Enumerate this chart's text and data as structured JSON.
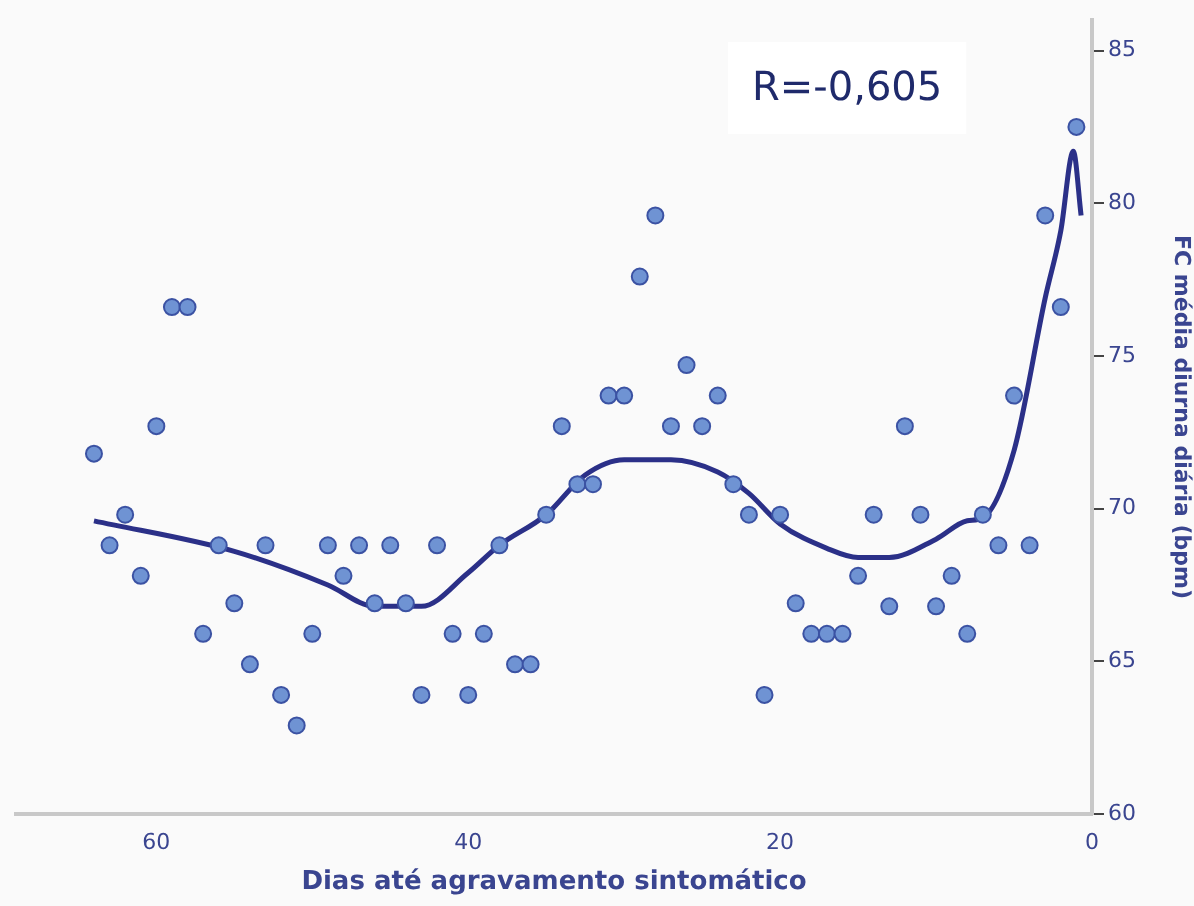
{
  "chart_data": {
    "type": "scatter",
    "xlabel": "Dias até agravamento sintomático",
    "ylabel": "FC média diurna diária (bpm)",
    "annotations": [
      "R=-0,605"
    ],
    "xlim": [
      69,
      0
    ],
    "xticks": [
      60,
      40,
      20,
      0
    ],
    "ylim": [
      60,
      86
    ],
    "yticks": [
      60,
      65,
      70,
      75,
      80,
      85
    ],
    "grid": false,
    "legend": false,
    "marker": "circle",
    "series": [
      {
        "color": "#6f93d3",
        "x": [
          64,
          63,
          62,
          61,
          60,
          59,
          58,
          57,
          56,
          55,
          54,
          53,
          52,
          51,
          50,
          49,
          48,
          47,
          46,
          45,
          44,
          43,
          42,
          41,
          40,
          39,
          38,
          37,
          36,
          35,
          34,
          33,
          32,
          31,
          30,
          29,
          28,
          27,
          26,
          25,
          24,
          23,
          22,
          21,
          20,
          19,
          18,
          17,
          16,
          15,
          14,
          13,
          12,
          11,
          10,
          9,
          8,
          7,
          6,
          5,
          4,
          3,
          2,
          1
        ],
        "values": [
          71.8,
          68.8,
          69.8,
          67.8,
          72.7,
          76.6,
          76.6,
          65.9,
          68.8,
          66.9,
          64.9,
          68.8,
          63.9,
          62.9,
          65.9,
          68.8,
          67.8,
          68.8,
          66.9,
          68.8,
          66.9,
          63.9,
          68.8,
          65.9,
          63.9,
          65.9,
          68.8,
          64.9,
          64.9,
          69.8,
          72.7,
          70.8,
          70.8,
          73.7,
          73.7,
          77.6,
          79.6,
          72.7,
          74.7,
          72.7,
          73.7,
          70.8,
          69.8,
          63.9,
          69.8,
          66.9,
          65.9,
          65.9,
          65.9,
          67.8,
          69.8,
          66.8,
          72.7,
          69.8,
          66.8,
          67.8,
          65.9,
          69.8,
          68.8,
          73.7,
          68.8,
          79.6,
          76.6,
          82.5
        ]
      },
      {
        "type": "line",
        "color": "#2b3088",
        "marker": "none",
        "line_style": "solid",
        "x": [
          64,
          55,
          49,
          46,
          43,
          40,
          38,
          35,
          32.5,
          30,
          27,
          24,
          22,
          20,
          17,
          15,
          13,
          10,
          8,
          7,
          5,
          3,
          2,
          1.2,
          0.7
        ],
        "values": [
          69.6,
          68.6,
          67.5,
          66.8,
          66.8,
          67.9,
          68.8,
          69.8,
          71.1,
          71.6,
          71.6,
          71.2,
          70.5,
          69.5,
          68.7,
          68.4,
          68.4,
          69.0,
          69.6,
          69.7,
          71.9,
          76.9,
          79.1,
          81.7,
          79.6
        ]
      }
    ]
  }
}
